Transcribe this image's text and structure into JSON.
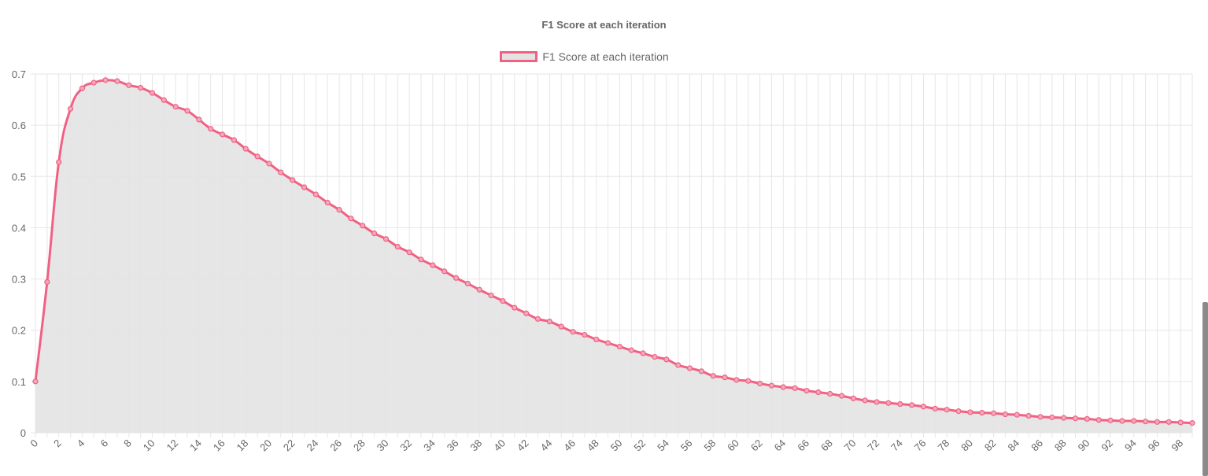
{
  "chart_data": {
    "type": "area",
    "title": "F1 Score at each iteration",
    "series": [
      {
        "name": "F1 Score at each iteration",
        "color": "#f06184",
        "fill": "#e3e3e3",
        "values": [
          0.1,
          0.294,
          0.528,
          0.632,
          0.672,
          0.683,
          0.688,
          0.686,
          0.678,
          0.673,
          0.663,
          0.649,
          0.636,
          0.628,
          0.611,
          0.593,
          0.582,
          0.571,
          0.554,
          0.539,
          0.525,
          0.508,
          0.493,
          0.479,
          0.465,
          0.449,
          0.435,
          0.418,
          0.404,
          0.389,
          0.378,
          0.363,
          0.352,
          0.338,
          0.327,
          0.315,
          0.302,
          0.291,
          0.279,
          0.268,
          0.257,
          0.244,
          0.233,
          0.222,
          0.217,
          0.207,
          0.197,
          0.191,
          0.182,
          0.175,
          0.168,
          0.161,
          0.155,
          0.148,
          0.143,
          0.132,
          0.126,
          0.12,
          0.111,
          0.108,
          0.103,
          0.101,
          0.096,
          0.092,
          0.089,
          0.087,
          0.082,
          0.079,
          0.076,
          0.072,
          0.067,
          0.063,
          0.06,
          0.058,
          0.056,
          0.054,
          0.051,
          0.047,
          0.045,
          0.042,
          0.04,
          0.039,
          0.038,
          0.036,
          0.035,
          0.033,
          0.031,
          0.03,
          0.029,
          0.028,
          0.027,
          0.025,
          0.024,
          0.023,
          0.023,
          0.022,
          0.021,
          0.021,
          0.02,
          0.019
        ]
      }
    ],
    "x": [
      0,
      1,
      2,
      3,
      4,
      5,
      6,
      7,
      8,
      9,
      10,
      11,
      12,
      13,
      14,
      15,
      16,
      17,
      18,
      19,
      20,
      21,
      22,
      23,
      24,
      25,
      26,
      27,
      28,
      29,
      30,
      31,
      32,
      33,
      34,
      35,
      36,
      37,
      38,
      39,
      40,
      41,
      42,
      43,
      44,
      45,
      46,
      47,
      48,
      49,
      50,
      51,
      52,
      53,
      54,
      55,
      56,
      57,
      58,
      59,
      60,
      61,
      62,
      63,
      64,
      65,
      66,
      67,
      68,
      69,
      70,
      71,
      72,
      73,
      74,
      75,
      76,
      77,
      78,
      79,
      80,
      81,
      82,
      83,
      84,
      85,
      86,
      87,
      88,
      89,
      90,
      91,
      92,
      93,
      94,
      95,
      96,
      97,
      98,
      99
    ],
    "x_tick_labels": [
      "0",
      "2",
      "4",
      "6",
      "8",
      "10",
      "12",
      "14",
      "16",
      "18",
      "20",
      "22",
      "24",
      "26",
      "28",
      "30",
      "32",
      "34",
      "36",
      "38",
      "40",
      "42",
      "44",
      "46",
      "48",
      "50",
      "52",
      "54",
      "56",
      "58",
      "60",
      "62",
      "64",
      "66",
      "68",
      "70",
      "72",
      "74",
      "76",
      "78",
      "80",
      "82",
      "84",
      "86",
      "88",
      "90",
      "92",
      "94",
      "96",
      "98"
    ],
    "y_tick_labels": [
      "0",
      "0.1",
      "0.2",
      "0.3",
      "0.4",
      "0.5",
      "0.6",
      "0.7"
    ],
    "ylim": [
      0,
      0.7
    ],
    "grid": true,
    "legend_position": "top-center"
  }
}
